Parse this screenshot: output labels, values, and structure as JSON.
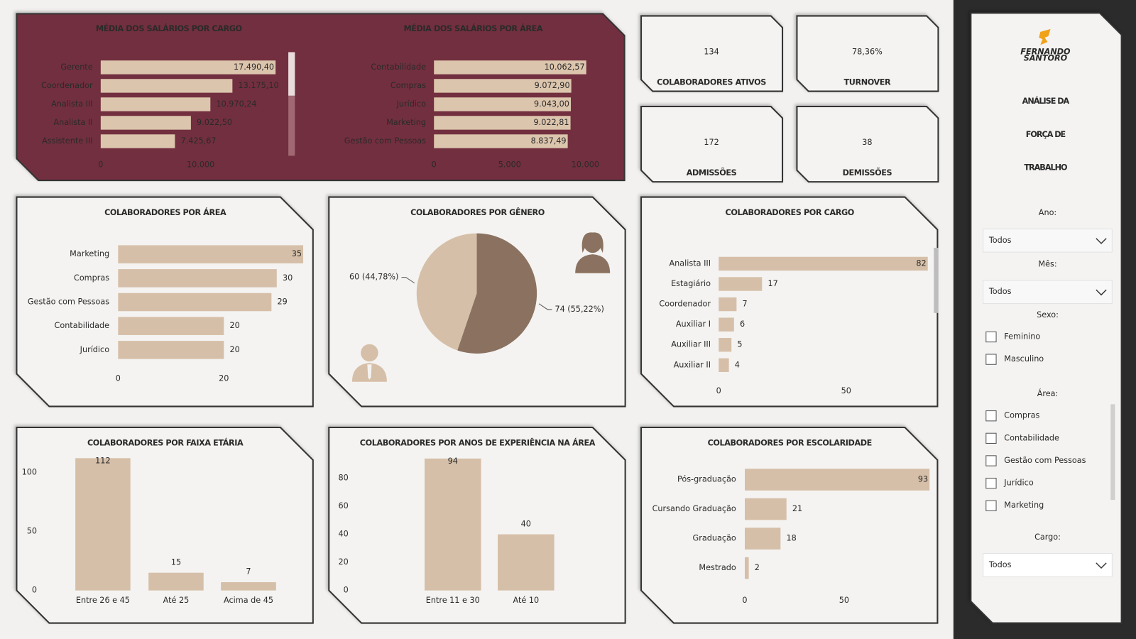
{
  "chart_data": [
    {
      "type": "bar",
      "orientation": "horizontal",
      "title": "MÉDIA DOS SALÁRIOS POR CARGO",
      "categories": [
        "Gerente",
        "Coordenador",
        "Analista III",
        "Analista II",
        "Assistente III"
      ],
      "values": [
        17490.4,
        13175.1,
        10970.24,
        9022.5,
        7425.67
      ],
      "value_labels": [
        "17.490,40",
        "13.175,10",
        "10.970,24",
        "9.022,50",
        "7.425,67"
      ],
      "color": "#dcc5ad",
      "xlim": [
        0,
        17500
      ],
      "xticks": [
        0,
        {
          "value": 10000,
          "label": "10.000"
        }
      ],
      "grid": false
    },
    {
      "type": "bar",
      "orientation": "horizontal",
      "title": "MÉDIA DOS SALÁRIOS POR ÁREA",
      "categories": [
        "Contabilidade",
        "Compras",
        "Jurídico",
        "Marketing",
        "Gestão com Pessoas"
      ],
      "values": [
        10062.57,
        9072.9,
        9043.0,
        9022.81,
        8837.49
      ],
      "value_labels": [
        "10.062,57",
        "9.072,90",
        "9.043,00",
        "9.022,81",
        "8.837,49"
      ],
      "color": "#dcc5ad",
      "xlim": [
        0,
        10100
      ],
      "xticks": [
        0,
        {
          "value": 5000,
          "label": "5.000"
        },
        {
          "value": 10000,
          "label": "10.000"
        }
      ],
      "grid": false
    },
    {
      "type": "bar",
      "orientation": "horizontal",
      "title": "COLABORADORES POR ÁREA",
      "categories": [
        "Marketing",
        "Compras",
        "Gestão com Pessoas",
        "Contabilidade",
        "Jurídico"
      ],
      "values": [
        35,
        30,
        29,
        20,
        20
      ],
      "color": "#d6bfa8",
      "xlim": [
        0,
        35
      ],
      "xticks": [
        0,
        20
      ],
      "grid": false
    },
    {
      "type": "pie",
      "title": "COLABORADORES POR GÊNERO",
      "values": [
        74,
        60
      ],
      "value_labels": [
        "74 (55,22%)",
        "60 (44,78%)"
      ],
      "colors": [
        "#8b7260",
        "#d6bfa8"
      ]
    },
    {
      "type": "bar",
      "orientation": "horizontal",
      "title": "COLABORADORES POR CARGO",
      "categories": [
        "Analista III",
        "Estagiário",
        "Coordenador",
        "Auxiliar I",
        "Auxiliar III",
        "Auxiliar II"
      ],
      "values": [
        82,
        17,
        7,
        6,
        5,
        4
      ],
      "color": "#d6bfa8",
      "xlim": [
        0,
        82
      ],
      "xticks": [
        0,
        50
      ],
      "grid": false
    },
    {
      "type": "bar",
      "orientation": "vertical",
      "title": "COLABORADORES POR FAIXA ETÁRIA",
      "categories": [
        "Entre 26 e 45",
        "Até 25",
        "Acima de 45"
      ],
      "values": [
        112,
        15,
        7
      ],
      "color": "#d6bfa8",
      "ylim": [
        0,
        112
      ],
      "yticks": [
        0,
        50,
        100
      ],
      "grid": false
    },
    {
      "type": "bar",
      "orientation": "vertical",
      "title": "COLABORADORES POR ANOS DE EXPERIÊNCIA NA ÁREA",
      "categories": [
        "Entre 11 e 30",
        "Até 10"
      ],
      "values": [
        94,
        40
      ],
      "color": "#d6bfa8",
      "ylim": [
        0,
        94
      ],
      "yticks": [
        0,
        20,
        40,
        60,
        80
      ],
      "grid": false
    },
    {
      "type": "bar",
      "orientation": "horizontal",
      "title": "COLABORADORES POR ESCOLARIDADE",
      "categories": [
        "Pós-graduação",
        "Cursando Graduação",
        "Graduação",
        "Mestrado"
      ],
      "values": [
        93,
        21,
        18,
        2
      ],
      "color": "#d6bfa8",
      "xlim": [
        0,
        93
      ],
      "xticks": [
        0,
        50
      ],
      "grid": false
    }
  ],
  "kpis": [
    {
      "value": "134",
      "label": "COLABORADORES ATIVOS"
    },
    {
      "value": "78,36%",
      "label": "TURNOVER"
    },
    {
      "value": "172",
      "label": "ADMISSÕES"
    },
    {
      "value": "38",
      "label": "DEMISSÕES"
    }
  ],
  "sidebar": {
    "logo": [
      "FERNANDO",
      "SANTORO"
    ],
    "title": [
      "ANÁLISE DA",
      "FORÇA DE",
      "TRABALHO"
    ],
    "filters": [
      {
        "label": "Ano:",
        "selected": "Todos"
      },
      {
        "label": "Mês:",
        "selected": "Todos"
      },
      {
        "label": "Sexo:",
        "options": [
          "Feminino",
          "Masculino"
        ]
      },
      {
        "label": "Área:",
        "options": [
          "Compras",
          "Contabilidade",
          "Gestão com Pessoas",
          "Jurídico",
          "Marketing"
        ]
      },
      {
        "label": "Cargo:",
        "selected": "Todos"
      }
    ]
  }
}
